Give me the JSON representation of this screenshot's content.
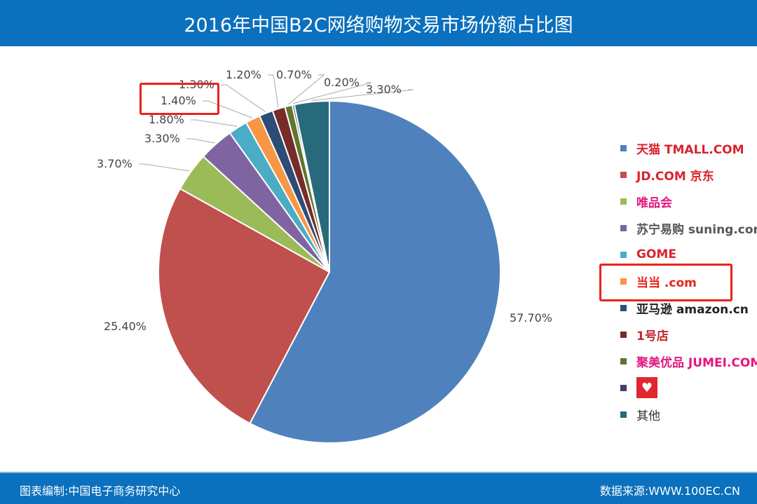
{
  "header": {
    "title": "2016年中国B2C网络购物交易市场份额占比图"
  },
  "footer": {
    "left": "图表编制:中国电子商务研究中心",
    "right": "数据来源:WWW.100EC.CN"
  },
  "chart_data": {
    "type": "pie",
    "title": "2016年中国B2C网络购物交易市场份额占比图",
    "legend_position": "right",
    "series": [
      {
        "name": "天猫 TMALL.COM",
        "value": 57.7,
        "label": "57.70%",
        "color": "#4f81bd",
        "logo_text": "天猫 TMALL.COM"
      },
      {
        "name": "京东 JD.COM",
        "value": 25.4,
        "label": "25.40%",
        "color": "#c0504d",
        "logo_text": "JD.COM 京东"
      },
      {
        "name": "唯品会",
        "value": 3.7,
        "label": "3.70%",
        "color": "#9bbb59",
        "logo_text": "唯品会"
      },
      {
        "name": "苏宁易购 suning.com",
        "value": 3.3,
        "label": "3.30%",
        "color": "#8064a2",
        "logo_text": "苏宁易购 suning.com"
      },
      {
        "name": "GOME",
        "value": 1.8,
        "label": "1.80%",
        "color": "#4bacc6",
        "logo_text": "GOME"
      },
      {
        "name": "当当 dangdang.com",
        "value": 1.4,
        "label": "1.40%",
        "color": "#f79646",
        "logo_text": "当当 .com",
        "highlighted": true
      },
      {
        "name": "亚马逊 amazon.cn",
        "value": 1.3,
        "label": "1.30%",
        "color": "#2c4d75",
        "logo_text": "亚马逊 amazon.cn"
      },
      {
        "name": "1号店",
        "value": 1.2,
        "label": "1.20%",
        "color": "#772c2a",
        "logo_text": "1号店"
      },
      {
        "name": "聚美优品 JUMEI.COM",
        "value": 0.7,
        "label": "0.70%",
        "color": "#5f7530",
        "logo_text": "聚美优品 JUMEI.COM"
      },
      {
        "name": "",
        "value": 0.2,
        "label": "0.20%",
        "color": "#4d3b62",
        "logo_text": ""
      },
      {
        "name": "其他",
        "value": 3.3,
        "label": "3.30%",
        "color": "#276a7c",
        "logo_text": "其他"
      }
    ]
  }
}
